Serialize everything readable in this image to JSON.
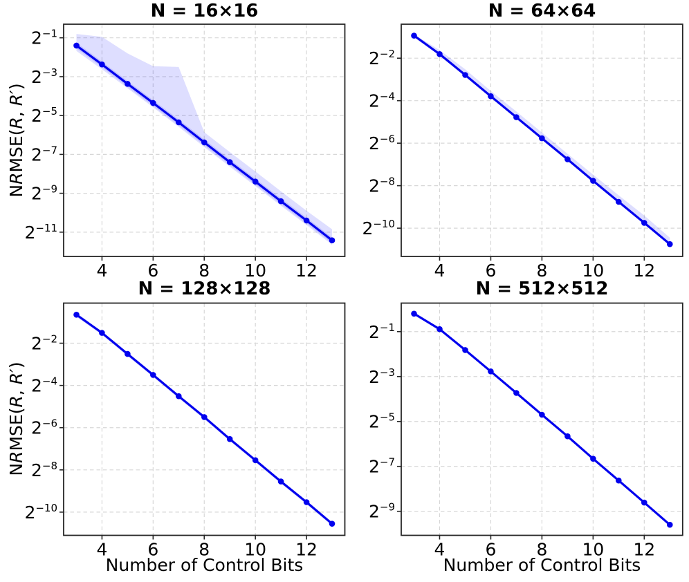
{
  "figure": {
    "background": "#ffffff",
    "description": "2x2 grid of log-scale line plots of reconstruction error vs number of control bits"
  },
  "styles": {
    "line_color": "#0202ee",
    "marker_color": "#0202ee",
    "band_color": "#0000ff",
    "band_opacity": 0.13,
    "grid_color": "#d7d7d7",
    "spine_color": "#262626",
    "text_color": "#000000"
  },
  "chart_data": [
    {
      "type": "line",
      "title": "N = 16×16",
      "xlabel": null,
      "ylabel": "NRMSE(R, R′)",
      "yscale": "log2",
      "x": [
        3,
        4,
        5,
        6,
        7,
        8,
        9,
        10,
        11,
        12,
        13
      ],
      "y_log2": [
        -1.4,
        -2.37,
        -3.37,
        -4.35,
        -5.35,
        -6.38,
        -7.4,
        -8.4,
        -9.41,
        -10.4,
        -11.42
      ],
      "band_upper_log2": [
        -0.8,
        -0.95,
        -1.8,
        -2.46,
        -2.5,
        -5.86,
        -6.88,
        -7.88,
        -8.9,
        -9.9,
        -10.85
      ],
      "band_lower_log2": [
        -1.68,
        -2.62,
        -3.6,
        -4.58,
        -5.58,
        -6.62,
        -7.63,
        -8.63,
        -9.64,
        -10.63,
        -11.65
      ],
      "inner_band_upper_log2": [
        -1.25,
        -2.22,
        -3.22,
        -4.2,
        -5.2,
        -6.23,
        -7.25,
        -8.25,
        -9.26,
        -10.25,
        -11.27
      ],
      "inner_band_lower_log2": [
        -1.55,
        -2.52,
        -3.52,
        -4.5,
        -5.5,
        -6.53,
        -7.55,
        -8.55,
        -9.56,
        -10.55,
        -11.57
      ],
      "xlim": [
        2.5,
        13.5
      ],
      "ylim_log2": [
        -12.25,
        -0.3
      ],
      "xticks": [
        4,
        6,
        8,
        10,
        12
      ],
      "yticks_log2": [
        -1,
        -3,
        -5,
        -7,
        -9,
        -11
      ],
      "grid": true,
      "legend": null
    },
    {
      "type": "line",
      "title": "N = 64×64",
      "xlabel": null,
      "ylabel": null,
      "yscale": "log2",
      "x": [
        3,
        4,
        5,
        6,
        7,
        8,
        9,
        10,
        11,
        12,
        13
      ],
      "y_log2": [
        -0.94,
        -1.81,
        -2.79,
        -3.79,
        -4.78,
        -5.77,
        -6.76,
        -7.77,
        -8.76,
        -9.75,
        -10.75
      ],
      "band_upper_log2": [
        -0.88,
        -1.62,
        -2.52,
        -3.54,
        -4.51,
        -5.5,
        -6.5,
        -7.48,
        -8.45,
        -9.4,
        -10.45
      ],
      "band_lower_log2": [
        -1.0,
        -1.87,
        -2.85,
        -3.85,
        -4.84,
        -5.83,
        -6.82,
        -7.83,
        -8.82,
        -9.81,
        -10.82
      ],
      "inner_band_upper_log2": [
        -0.86,
        -1.73,
        -2.71,
        -3.71,
        -4.7,
        -5.69,
        -6.68,
        -7.69,
        -8.68,
        -9.67,
        -10.67
      ],
      "inner_band_lower_log2": [
        -0.99,
        -1.86,
        -2.84,
        -3.84,
        -4.83,
        -5.82,
        -6.81,
        -7.82,
        -8.81,
        -9.8,
        -10.8
      ],
      "xlim": [
        2.5,
        13.5
      ],
      "ylim_log2": [
        -11.33,
        -0.4
      ],
      "xticks": [
        4,
        6,
        8,
        10,
        12
      ],
      "yticks_log2": [
        -2,
        -4,
        -6,
        -8,
        -10
      ],
      "grid": true,
      "legend": null
    },
    {
      "type": "line",
      "title": "N = 128×128",
      "xlabel": "Number of Control Bits",
      "ylabel": "NRMSE(R, R′)",
      "yscale": "log2",
      "x": [
        3,
        4,
        5,
        6,
        7,
        8,
        9,
        10,
        11,
        12,
        13
      ],
      "y_log2": [
        -0.65,
        -1.51,
        -2.51,
        -3.5,
        -4.51,
        -5.5,
        -6.54,
        -7.54,
        -8.55,
        -9.53,
        -10.55
      ],
      "band_upper_log2": [
        -0.59,
        -1.45,
        -2.45,
        -3.44,
        -4.45,
        -5.44,
        -6.48,
        -7.48,
        -8.49,
        -9.47,
        -10.49
      ],
      "band_lower_log2": [
        -0.75,
        -1.61,
        -2.61,
        -3.6,
        -4.61,
        -5.6,
        -6.64,
        -7.64,
        -8.65,
        -9.63,
        -10.65
      ],
      "inner_band_upper_log2": null,
      "inner_band_lower_log2": null,
      "xlim": [
        2.5,
        13.5
      ],
      "ylim_log2": [
        -11.1,
        -0.1
      ],
      "xticks": [
        4,
        6,
        8,
        10,
        12
      ],
      "yticks_log2": [
        -2,
        -4,
        -6,
        -8,
        -10
      ],
      "grid": true,
      "legend": null
    },
    {
      "type": "line",
      "title": "N = 512×512",
      "xlabel": "Number of Control Bits",
      "ylabel": null,
      "yscale": "log2",
      "x": [
        3,
        4,
        5,
        6,
        7,
        8,
        9,
        10,
        11,
        12,
        13
      ],
      "y_log2": [
        -0.2,
        -0.89,
        -1.82,
        -2.77,
        -3.73,
        -4.7,
        -5.66,
        -6.66,
        -7.63,
        -8.61,
        -9.6
      ],
      "band_upper_log2": null,
      "band_lower_log2": null,
      "inner_band_upper_log2": null,
      "inner_band_lower_log2": null,
      "xlim": [
        2.5,
        13.5
      ],
      "ylim_log2": [
        -10.07,
        0.27
      ],
      "xticks": [
        4,
        6,
        8,
        10,
        12
      ],
      "yticks_log2": [
        -1,
        -3,
        -5,
        -7,
        -9
      ],
      "grid": true,
      "legend": null
    }
  ]
}
